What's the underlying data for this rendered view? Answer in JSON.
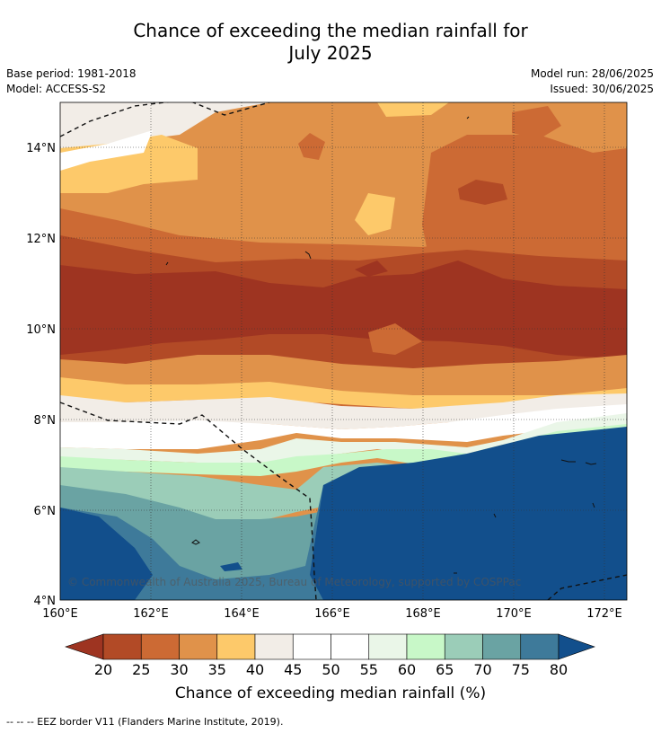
{
  "title_line1": "Chance of exceeding the median rainfall for",
  "title_line2": "July 2025",
  "base_period": "Base period: 1981-2018",
  "model": "Model: ACCESS-S2",
  "model_run": "Model run: 28/06/2025",
  "issued": "Issued: 30/06/2025",
  "copyright": "© Commonwealth of Australia 2025, Bureau of Meteorology, supported by COSPPac",
  "lat_ticks": [
    "14°N",
    "12°N",
    "10°N",
    "8°N",
    "6°N",
    "4°N"
  ],
  "lon_ticks": [
    "160°E",
    "162°E",
    "164°E",
    "166°E",
    "168°E",
    "170°E",
    "172°E"
  ],
  "colorbar": {
    "levels": [
      "20",
      "25",
      "30",
      "35",
      "40",
      "45",
      "50",
      "55",
      "60",
      "65",
      "70",
      "75",
      "80"
    ],
    "colors": [
      "#9e3421",
      "#b24a26",
      "#cc6a34",
      "#e0924a",
      "#fdc96a",
      "#f2ede7",
      "#ffffff",
      "#ffffff",
      "#eaf6e8",
      "#c8f8c8",
      "#9bcdb8",
      "#6aa3a3",
      "#3e7a9a"
    ],
    "under_color": "#9e3421",
    "over_color": "#124f8c",
    "label": "Chance of exceeding median rainfall (%)"
  },
  "footnote": "--  --  -- EEZ border V11 (Flanders Marine Institute, 2019)."
}
